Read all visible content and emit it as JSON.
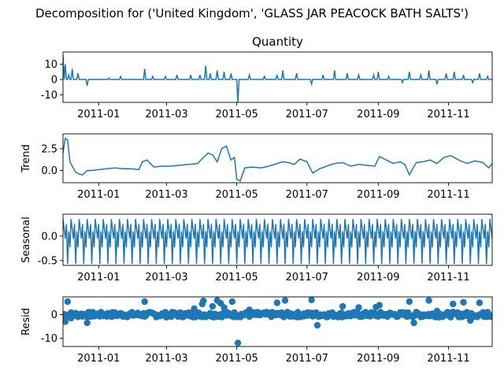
{
  "figure_title": "Decomposition for ('United Kingdom', 'GLASS JAR PEACOCK BATH SALTS')",
  "chart_data": [
    {
      "type": "line",
      "panel": "observed",
      "title": "Quantity",
      "ylabel": "",
      "ylim": [
        -15,
        18
      ],
      "yticks": [
        -10,
        0,
        10
      ],
      "xlim": [
        "2010-12-01",
        "2011-12-09"
      ],
      "xticks": [
        "2011-01",
        "2011-03",
        "2011-05",
        "2011-07",
        "2011-09",
        "2011-11"
      ],
      "color": "#1f77b4",
      "baseline": 0,
      "spikes": [
        [
          "2010-12-01",
          16
        ],
        [
          "2010-12-03",
          10
        ],
        [
          "2010-12-06",
          3
        ],
        [
          "2010-12-09",
          7
        ],
        [
          "2010-12-14",
          4
        ],
        [
          "2010-12-22",
          -4
        ],
        [
          "2011-01-10",
          1
        ],
        [
          "2011-01-20",
          2
        ],
        [
          "2011-02-10",
          7
        ],
        [
          "2011-02-17",
          2
        ],
        [
          "2011-02-28",
          2
        ],
        [
          "2011-03-10",
          3
        ],
        [
          "2011-03-22",
          3
        ],
        [
          "2011-03-30",
          3
        ],
        [
          "2011-04-04",
          9
        ],
        [
          "2011-04-08",
          4
        ],
        [
          "2011-04-14",
          6
        ],
        [
          "2011-04-20",
          5
        ],
        [
          "2011-04-26",
          4
        ],
        [
          "2011-05-02",
          -15
        ],
        [
          "2011-05-12",
          3
        ],
        [
          "2011-05-25",
          2
        ],
        [
          "2011-06-05",
          3
        ],
        [
          "2011-06-10",
          6
        ],
        [
          "2011-06-22",
          4
        ],
        [
          "2011-07-05",
          -3
        ],
        [
          "2011-07-15",
          3
        ],
        [
          "2011-07-25",
          6
        ],
        [
          "2011-08-05",
          4
        ],
        [
          "2011-08-15",
          3
        ],
        [
          "2011-08-28",
          3
        ],
        [
          "2011-09-01",
          5
        ],
        [
          "2011-09-10",
          2
        ],
        [
          "2011-09-22",
          -2
        ],
        [
          "2011-09-28",
          5
        ],
        [
          "2011-10-08",
          3
        ],
        [
          "2011-10-15",
          6
        ],
        [
          "2011-10-22",
          -3
        ],
        [
          "2011-10-30",
          4
        ],
        [
          "2011-11-06",
          5
        ],
        [
          "2011-11-14",
          3
        ],
        [
          "2011-11-22",
          -2
        ],
        [
          "2011-11-28",
          4
        ],
        [
          "2011-12-05",
          2
        ]
      ]
    },
    {
      "type": "line",
      "panel": "trend",
      "ylabel": "Trend",
      "ylim": [
        -1.4,
        4.2
      ],
      "yticks": [
        0.0,
        2.5
      ],
      "ytick_labels": [
        "0.0",
        "2.5"
      ],
      "xlim": [
        "2010-12-01",
        "2011-12-09"
      ],
      "xticks": [
        "2011-01",
        "2011-03",
        "2011-05",
        "2011-07",
        "2011-09",
        "2011-11"
      ],
      "color": "#1f77b4",
      "x": [
        "2010-12-01",
        "2010-12-03",
        "2010-12-05",
        "2010-12-07",
        "2010-12-09",
        "2010-12-12",
        "2010-12-15",
        "2010-12-18",
        "2010-12-22",
        "2010-12-26",
        "2011-01-01",
        "2011-01-08",
        "2011-01-15",
        "2011-01-22",
        "2011-01-29",
        "2011-02-05",
        "2011-02-08",
        "2011-02-12",
        "2011-02-18",
        "2011-02-25",
        "2011-03-05",
        "2011-03-12",
        "2011-03-20",
        "2011-03-28",
        "2011-04-02",
        "2011-04-06",
        "2011-04-10",
        "2011-04-14",
        "2011-04-18",
        "2011-04-22",
        "2011-04-26",
        "2011-04-29",
        "2011-05-01",
        "2011-05-04",
        "2011-05-08",
        "2011-05-15",
        "2011-05-22",
        "2011-05-29",
        "2011-06-05",
        "2011-06-10",
        "2011-06-15",
        "2011-06-20",
        "2011-06-25",
        "2011-07-01",
        "2011-07-06",
        "2011-07-12",
        "2011-07-18",
        "2011-07-25",
        "2011-08-01",
        "2011-08-08",
        "2011-08-15",
        "2011-08-22",
        "2011-08-29",
        "2011-09-02",
        "2011-09-08",
        "2011-09-14",
        "2011-09-20",
        "2011-09-24",
        "2011-09-28",
        "2011-10-04",
        "2011-10-10",
        "2011-10-16",
        "2011-10-22",
        "2011-10-28",
        "2011-11-03",
        "2011-11-10",
        "2011-11-17",
        "2011-11-24",
        "2011-12-01",
        "2011-12-06",
        "2011-12-09"
      ],
      "values": [
        2.0,
        3.7,
        3.5,
        1.0,
        0.5,
        -0.2,
        -0.4,
        -0.5,
        0.0,
        0.0,
        0.1,
        0.2,
        0.3,
        0.2,
        0.2,
        0.1,
        1.0,
        1.2,
        0.4,
        0.5,
        0.5,
        0.6,
        0.7,
        0.8,
        1.5,
        2.0,
        1.8,
        1.0,
        2.5,
        2.8,
        1.2,
        1.5,
        -1.0,
        -1.2,
        0.3,
        0.4,
        0.3,
        0.5,
        0.8,
        1.0,
        0.9,
        0.7,
        1.3,
        1.0,
        -0.3,
        0.2,
        0.5,
        0.8,
        0.9,
        0.5,
        0.7,
        0.6,
        0.5,
        1.6,
        1.2,
        0.8,
        1.0,
        0.7,
        -0.5,
        0.9,
        1.0,
        1.2,
        0.8,
        1.5,
        1.7,
        1.2,
        0.8,
        1.1,
        0.9,
        0.3,
        0.8
      ]
    },
    {
      "type": "line",
      "panel": "seasonal",
      "ylabel": "Seasonal",
      "ylim": [
        -0.6,
        0.45
      ],
      "yticks": [
        -0.5,
        0.0
      ],
      "ytick_labels": [
        "-0.5",
        "0.0"
      ],
      "xlim": [
        "2010-12-01",
        "2011-12-09"
      ],
      "xticks": [
        "2011-01",
        "2011-03",
        "2011-05",
        "2011-07",
        "2011-09",
        "2011-11"
      ],
      "color": "#1f77b4",
      "period_days": 7,
      "weekly_pattern": [
        0.35,
        0.15,
        -0.05,
        0.25,
        -0.57,
        0.1,
        -0.23
      ]
    },
    {
      "type": "scatter",
      "panel": "resid",
      "ylabel": "Resid",
      "ylim": [
        -13.5,
        7.5
      ],
      "yticks": [
        -10,
        0
      ],
      "xlim": [
        "2010-12-01",
        "2011-12-09"
      ],
      "xticks": [
        "2011-01",
        "2011-03",
        "2011-05",
        "2011-07",
        "2011-09",
        "2011-11"
      ],
      "color": "#1f77b4",
      "baseline": 0,
      "outliers": [
        [
          "2010-12-01",
          -2
        ],
        [
          "2010-12-03",
          -3
        ],
        [
          "2010-12-05",
          5.5
        ],
        [
          "2010-12-08",
          -1.5
        ],
        [
          "2010-12-22",
          -3.5
        ],
        [
          "2011-02-10",
          5.5
        ],
        [
          "2011-03-25",
          2.5
        ],
        [
          "2011-04-01",
          4.5
        ],
        [
          "2011-04-02",
          5.8
        ],
        [
          "2011-04-10",
          3.5
        ],
        [
          "2011-04-14",
          6.0
        ],
        [
          "2011-04-17",
          4.8
        ],
        [
          "2011-04-20",
          3.0
        ],
        [
          "2011-04-27",
          5.5
        ],
        [
          "2011-05-02",
          -12.0
        ],
        [
          "2011-05-12",
          2.0
        ],
        [
          "2011-06-05",
          5.0
        ],
        [
          "2011-06-12",
          6.0
        ],
        [
          "2011-07-05",
          6.2
        ],
        [
          "2011-07-10",
          -4.5
        ],
        [
          "2011-08-01",
          3.5
        ],
        [
          "2011-08-15",
          3.0
        ],
        [
          "2011-08-30",
          3.2
        ],
        [
          "2011-09-02",
          4.0
        ],
        [
          "2011-09-28",
          5.5
        ],
        [
          "2011-10-02",
          -3.5
        ],
        [
          "2011-10-15",
          6.0
        ],
        [
          "2011-10-22",
          1.5
        ],
        [
          "2011-11-05",
          4.5
        ],
        [
          "2011-11-14",
          5.2
        ],
        [
          "2011-11-28",
          5.0
        ],
        [
          "2011-11-20",
          -2.5
        ],
        [
          "2011-12-05",
          1.0
        ]
      ]
    }
  ]
}
